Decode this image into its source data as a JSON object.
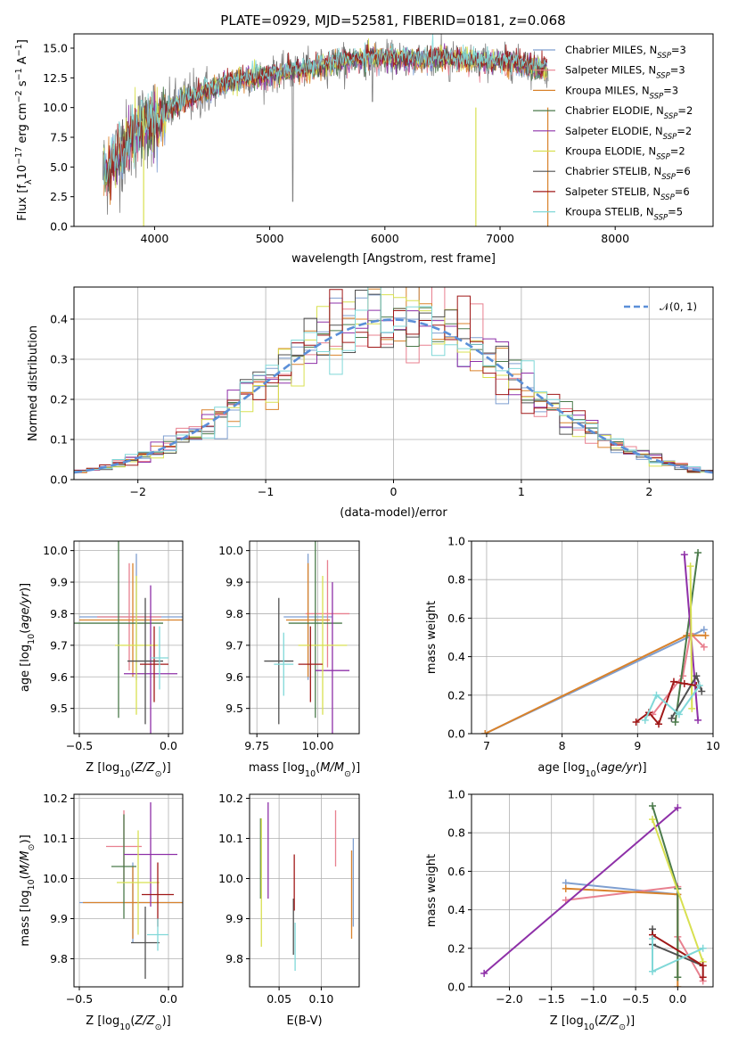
{
  "figure_title": "PLATE=0929, MJD=52581, FIBERID=0181, z=0.068",
  "palette": [
    "#7f9fd0",
    "#e8808f",
    "#d9822b",
    "#4a7a4a",
    "#8e30a8",
    "#d8e050",
    "#505050",
    "#a01818",
    "#80d8d8"
  ],
  "chart_data": [
    {
      "id": "spectrum",
      "type": "line",
      "title": "PLATE=0929, MJD=52581, FIBERID=0181, z=0.068",
      "xlabel": "wavelength [Angstrom, rest frame]",
      "ylabel": "Flux [fλ10⁻¹⁷ erg cm⁻² s⁻¹ A⁻¹]",
      "xlim": [
        3300,
        8850
      ],
      "ylim": [
        0,
        16.2
      ],
      "xticks": [
        "4000",
        "5000",
        "6000",
        "7000",
        "8000"
      ],
      "yticks": [
        "0.0",
        "2.5",
        "5.0",
        "7.5",
        "10.0",
        "12.5",
        "15.0"
      ],
      "grid": false,
      "legend_position": "right",
      "data_color": "#808080",
      "continuum": {
        "x": [
          3550,
          3650,
          3750,
          3850,
          3950,
          4050,
          4150,
          4300,
          4500,
          4700,
          4900,
          5100,
          5300,
          5500,
          5700,
          5900,
          6100,
          6300,
          6500,
          6700,
          6900,
          7100,
          7300,
          7420
        ],
        "y": [
          4.5,
          5.5,
          6.8,
          8.0,
          8.8,
          9.3,
          10.0,
          10.8,
          11.6,
          12.2,
          12.6,
          12.9,
          13.2,
          13.6,
          14.0,
          14.2,
          14.1,
          14.0,
          14.2,
          14.0,
          13.9,
          13.8,
          13.4,
          13.2
        ]
      },
      "series": [
        {
          "name": "Chabrier MILES, N",
          "sub": "SSP",
          "suffix": "=3",
          "color": "#7f9fd0"
        },
        {
          "name": "Salpeter MILES, N",
          "sub": "SSP",
          "suffix": "=3",
          "color": "#e8808f"
        },
        {
          "name": "Kroupa MILES, N",
          "sub": "SSP",
          "suffix": "=3",
          "color": "#d9822b"
        },
        {
          "name": "Chabrier ELODIE, N",
          "sub": "SSP",
          "suffix": "=2",
          "color": "#4a7a4a"
        },
        {
          "name": "Salpeter ELODIE, N",
          "sub": "SSP",
          "suffix": "=2",
          "color": "#8e30a8"
        },
        {
          "name": "Kroupa ELODIE, N",
          "sub": "SSP",
          "suffix": "=2",
          "color": "#d8e050"
        },
        {
          "name": "Chabrier STELIB, N",
          "sub": "SSP",
          "suffix": "=6",
          "color": "#505050"
        },
        {
          "name": "Salpeter STELIB, N",
          "sub": "SSP",
          "suffix": "=6",
          "color": "#a01818"
        },
        {
          "name": "Kroupa STELIB, N",
          "sub": "SSP",
          "suffix": "=5",
          "color": "#80d8d8"
        }
      ]
    },
    {
      "id": "residuals",
      "type": "histogram",
      "xlabel": "(data-model)/error",
      "ylabel": "Normed distribution",
      "xlim": [
        -2.5,
        2.5
      ],
      "ylim": [
        0,
        0.48
      ],
      "xticks": [
        -2,
        -1,
        0,
        1,
        2
      ],
      "xtick_labels": [
        "−2",
        "−1",
        "0",
        "1",
        "2"
      ],
      "yticks": [
        0.0,
        0.1,
        0.2,
        0.3,
        0.4
      ],
      "ytick_labels": [
        "0.0",
        "0.1",
        "0.2",
        "0.3",
        "0.4"
      ],
      "grid": true,
      "legend_position": "top-right",
      "bin_width": 0.1,
      "reference": {
        "name": "𝒩(0, 1)",
        "color": "#5b8fd8",
        "style": "dashed",
        "mean": 0,
        "sigma": 1
      }
    },
    {
      "id": "age_vs_Z",
      "type": "scatter",
      "xlabel": "Z [log10(Z/Z⊙)]",
      "ylabel": "age [log10(age/yr)]",
      "xlim": [
        -0.53,
        0.08
      ],
      "ylim": [
        9.42,
        10.03
      ],
      "xticks": [
        -0.5,
        0.0
      ],
      "xtick_labels": [
        "−0.5",
        "0.0"
      ],
      "yticks": [
        9.5,
        9.6,
        9.7,
        9.8,
        9.9,
        10.0
      ],
      "ytick_labels": [
        "9.5",
        "9.6",
        "9.7",
        "9.8",
        "9.9",
        "10.0"
      ],
      "grid": true,
      "points": [
        {
          "x": -0.18,
          "xerr": 0.32,
          "y": 9.79,
          "yerr": 0.2,
          "color": "#7f9fd0"
        },
        {
          "x": -0.22,
          "xerr": 0.18,
          "y": 9.79,
          "yerr": 0.17,
          "color": "#e8808f"
        },
        {
          "x": -0.2,
          "xerr": 0.3,
          "y": 9.78,
          "yerr": 0.18,
          "color": "#d9822b"
        },
        {
          "x": -0.28,
          "xerr": 0.25,
          "y": 9.77,
          "yerr": 0.3,
          "color": "#4a7a4a"
        },
        {
          "x": -0.1,
          "xerr": 0.15,
          "y": 9.61,
          "yerr": 0.28,
          "color": "#8e30a8"
        },
        {
          "x": -0.18,
          "xerr": 0.12,
          "y": 9.7,
          "yerr": 0.22,
          "color": "#d8e050"
        },
        {
          "x": -0.13,
          "xerr": 0.1,
          "y": 9.65,
          "yerr": 0.2,
          "color": "#505050"
        },
        {
          "x": -0.08,
          "xerr": 0.08,
          "y": 9.64,
          "yerr": 0.12,
          "color": "#a01818"
        },
        {
          "x": -0.05,
          "xerr": 0.05,
          "y": 9.66,
          "yerr": 0.1,
          "color": "#80d8d8"
        }
      ]
    },
    {
      "id": "age_vs_mass",
      "type": "scatter",
      "xlabel": "mass [log10(M/M⊙)]",
      "ylabel": "",
      "xlim": [
        9.72,
        10.17
      ],
      "ylim": [
        9.42,
        10.03
      ],
      "xticks": [
        9.75,
        10.0
      ],
      "xtick_labels": [
        "9.75",
        "10.00"
      ],
      "yticks": [
        9.5,
        9.6,
        9.7,
        9.8,
        9.9,
        10.0
      ],
      "ytick_labels": [
        "9.5",
        "9.6",
        "9.7",
        "9.8",
        "9.9",
        "10.0"
      ],
      "grid": true,
      "points": [
        {
          "x": 9.96,
          "xerr": 0.1,
          "y": 9.79,
          "yerr": 0.2,
          "color": "#7f9fd0"
        },
        {
          "x": 10.04,
          "xerr": 0.09,
          "y": 9.8,
          "yerr": 0.17,
          "color": "#e8808f"
        },
        {
          "x": 9.96,
          "xerr": 0.09,
          "y": 9.78,
          "yerr": 0.18,
          "color": "#d9822b"
        },
        {
          "x": 9.99,
          "xerr": 0.11,
          "y": 9.77,
          "yerr": 0.3,
          "color": "#4a7a4a"
        },
        {
          "x": 10.06,
          "xerr": 0.07,
          "y": 9.62,
          "yerr": 0.28,
          "color": "#8e30a8"
        },
        {
          "x": 10.02,
          "xerr": 0.1,
          "y": 9.7,
          "yerr": 0.22,
          "color": "#d8e050"
        },
        {
          "x": 9.84,
          "xerr": 0.06,
          "y": 9.65,
          "yerr": 0.2,
          "color": "#505050"
        },
        {
          "x": 9.97,
          "xerr": 0.05,
          "y": 9.64,
          "yerr": 0.12,
          "color": "#a01818"
        },
        {
          "x": 9.86,
          "xerr": 0.04,
          "y": 9.64,
          "yerr": 0.1,
          "color": "#80d8d8"
        }
      ]
    },
    {
      "id": "weight_vs_age",
      "type": "line",
      "xlabel": "age [log10(age/yr)]",
      "ylabel": "mass weight",
      "xlim": [
        6.8,
        10.0
      ],
      "ylim": [
        0,
        1.0
      ],
      "xticks": [
        7,
        8,
        9,
        10
      ],
      "xtick_labels": [
        "7",
        "8",
        "9",
        "10"
      ],
      "yticks": [
        0.0,
        0.2,
        0.4,
        0.6,
        0.8,
        1.0
      ],
      "ytick_labels": [
        "0.0",
        "0.2",
        "0.4",
        "0.6",
        "0.8",
        "1.0"
      ],
      "grid": true,
      "series": [
        {
          "color": "#7f9fd0",
          "x": [
            6.98,
            9.88
          ],
          "y": [
            0.0,
            0.54
          ]
        },
        {
          "color": "#e8808f",
          "x": [
            9.2,
            9.6,
            9.7,
            9.88
          ],
          "y": [
            0.1,
            0.3,
            0.52,
            0.45
          ]
        },
        {
          "color": "#d9822b",
          "x": [
            6.98,
            9.65,
            9.9
          ],
          "y": [
            0.0,
            0.51,
            0.51
          ]
        },
        {
          "color": "#4a7a4a",
          "x": [
            9.5,
            9.8
          ],
          "y": [
            0.06,
            0.94
          ]
        },
        {
          "color": "#8e30a8",
          "x": [
            9.62,
            9.8
          ],
          "y": [
            0.93,
            0.07
          ]
        },
        {
          "color": "#d8e050",
          "x": [
            9.7,
            9.72
          ],
          "y": [
            0.87,
            0.13
          ]
        },
        {
          "color": "#505050",
          "x": [
            9.45,
            9.78,
            9.85
          ],
          "y": [
            0.08,
            0.3,
            0.22
          ]
        },
        {
          "color": "#a01818",
          "x": [
            8.98,
            9.15,
            9.28,
            9.48,
            9.62,
            9.78
          ],
          "y": [
            0.06,
            0.11,
            0.05,
            0.27,
            0.26,
            0.25
          ]
        },
        {
          "color": "#80d8d8",
          "x": [
            9.1,
            9.25,
            9.55,
            9.82
          ],
          "y": [
            0.07,
            0.2,
            0.1,
            0.25
          ]
        }
      ]
    },
    {
      "id": "mass_vs_Z",
      "type": "scatter",
      "xlabel": "Z [log10(Z/Z⊙)]",
      "ylabel": "mass [log10(M/M⊙)]",
      "xlim": [
        -0.53,
        0.08
      ],
      "ylim": [
        9.73,
        10.21
      ],
      "xticks": [
        -0.5,
        0.0
      ],
      "xtick_labels": [
        "−0.5",
        "0.0"
      ],
      "yticks": [
        9.8,
        9.9,
        10.0,
        10.1,
        10.2
      ],
      "ytick_labels": [
        "9.8",
        "9.9",
        "10.0",
        "10.1",
        "10.2"
      ],
      "grid": true,
      "points": [
        {
          "x": -0.2,
          "xerr": 0.3,
          "y": 9.94,
          "yerr": 0.1,
          "color": "#7f9fd0"
        },
        {
          "x": -0.25,
          "xerr": 0.1,
          "y": 10.08,
          "yerr": 0.09,
          "color": "#e8808f"
        },
        {
          "x": -0.2,
          "xerr": 0.28,
          "y": 9.94,
          "yerr": 0.09,
          "color": "#d9822b"
        },
        {
          "x": -0.25,
          "xerr": 0.07,
          "y": 10.03,
          "yerr": 0.13,
          "color": "#4a7a4a"
        },
        {
          "x": -0.1,
          "xerr": 0.15,
          "y": 10.06,
          "yerr": 0.13,
          "color": "#8e30a8"
        },
        {
          "x": -0.17,
          "xerr": 0.12,
          "y": 9.99,
          "yerr": 0.13,
          "color": "#d8e050"
        },
        {
          "x": -0.13,
          "xerr": 0.08,
          "y": 9.84,
          "yerr": 0.09,
          "color": "#505050"
        },
        {
          "x": -0.06,
          "xerr": 0.09,
          "y": 9.96,
          "yerr": 0.08,
          "color": "#a01818"
        },
        {
          "x": -0.06,
          "xerr": 0.06,
          "y": 9.86,
          "yerr": 0.04,
          "color": "#80d8d8"
        }
      ]
    },
    {
      "id": "mass_vs_ebv",
      "type": "scatter",
      "xlabel": "E(B-V)",
      "ylabel": "",
      "xlim": [
        0.015,
        0.145
      ],
      "ylim": [
        9.73,
        10.21
      ],
      "xticks": [
        0.05,
        0.1
      ],
      "xtick_labels": [
        "0.05",
        "0.10"
      ],
      "yticks": [
        9.8,
        9.9,
        10.0,
        10.1,
        10.2
      ],
      "ytick_labels": [
        "9.8",
        "9.9",
        "10.0",
        "10.1",
        "10.2"
      ],
      "grid": true,
      "points": [
        {
          "x": 0.138,
          "xerr": 0,
          "y": 9.99,
          "yerr": 0.11,
          "color": "#7f9fd0"
        },
        {
          "x": 0.117,
          "xerr": 0,
          "y": 10.1,
          "yerr": 0.07,
          "color": "#e8808f"
        },
        {
          "x": 0.136,
          "xerr": 0,
          "y": 9.96,
          "yerr": 0.11,
          "color": "#d9822b"
        },
        {
          "x": 0.028,
          "xerr": 0,
          "y": 10.05,
          "yerr": 0.1,
          "color": "#4a7a4a"
        },
        {
          "x": 0.037,
          "xerr": 0,
          "y": 10.07,
          "yerr": 0.12,
          "color": "#8e30a8"
        },
        {
          "x": 0.029,
          "xerr": 0,
          "y": 9.99,
          "yerr": 0.16,
          "color": "#d8e050"
        },
        {
          "x": 0.067,
          "xerr": 0,
          "y": 9.88,
          "yerr": 0.07,
          "color": "#505050"
        },
        {
          "x": 0.068,
          "xerr": 0,
          "y": 9.99,
          "yerr": 0.07,
          "color": "#a01818"
        },
        {
          "x": 0.069,
          "xerr": 0,
          "y": 9.83,
          "yerr": 0.06,
          "color": "#80d8d8"
        }
      ]
    },
    {
      "id": "weight_vs_Z",
      "type": "line",
      "xlabel": "Z [log10(Z/Z⊙)]",
      "ylabel": "mass weight",
      "xlim": [
        -2.45,
        0.42
      ],
      "ylim": [
        0,
        1.0
      ],
      "xticks": [
        -2.0,
        -1.5,
        -1.0,
        -0.5,
        0.0
      ],
      "xtick_labels": [
        "−2.0",
        "−1.5",
        "−1.0",
        "−0.5",
        "0.0"
      ],
      "yticks": [
        0.0,
        0.2,
        0.4,
        0.6,
        0.8,
        1.0
      ],
      "ytick_labels": [
        "0.0",
        "0.2",
        "0.4",
        "0.6",
        "0.8",
        "1.0"
      ],
      "grid": true,
      "series": [
        {
          "color": "#7f9fd0",
          "x": [
            -1.33,
            0.0
          ],
          "y": [
            0.54,
            0.48
          ]
        },
        {
          "color": "#e8808f",
          "x": [
            -1.33,
            0.0,
            0.0,
            0.3
          ],
          "y": [
            0.45,
            0.52,
            0.26,
            0.03
          ]
        },
        {
          "color": "#d9822b",
          "x": [
            -1.33,
            0.0,
            0.0
          ],
          "y": [
            0.51,
            0.48,
            0.0
          ]
        },
        {
          "color": "#4a7a4a",
          "x": [
            -0.3,
            0.0,
            0.0
          ],
          "y": [
            0.94,
            0.51,
            0.05
          ]
        },
        {
          "color": "#8e30a8",
          "x": [
            -2.3,
            0.0
          ],
          "y": [
            0.07,
            0.93
          ]
        },
        {
          "color": "#d8e050",
          "x": [
            -0.3,
            0.3
          ],
          "y": [
            0.87,
            0.13
          ]
        },
        {
          "color": "#505050",
          "x": [
            -0.3,
            -0.3,
            0.3
          ],
          "y": [
            0.3,
            0.22,
            0.11
          ]
        },
        {
          "color": "#a01818",
          "x": [
            -0.3,
            0.3,
            0.3
          ],
          "y": [
            0.27,
            0.11,
            0.05
          ]
        },
        {
          "color": "#80d8d8",
          "x": [
            -0.3,
            -0.3,
            0.3
          ],
          "y": [
            0.25,
            0.08,
            0.2
          ]
        }
      ]
    }
  ]
}
